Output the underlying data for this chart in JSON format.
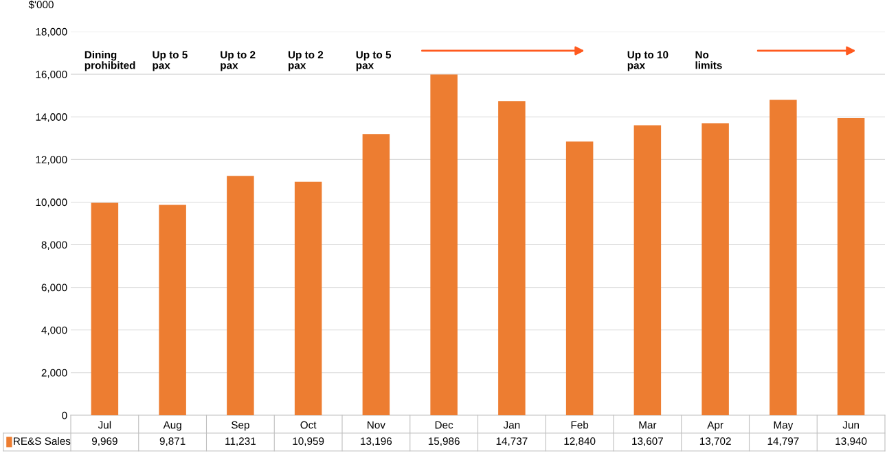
{
  "chart_data": {
    "type": "bar",
    "ylabel": "$'000",
    "categories": [
      "Jul",
      "Aug",
      "Sep",
      "Oct",
      "Nov",
      "Dec",
      "Jan",
      "Feb",
      "Mar",
      "Apr",
      "May",
      "Jun"
    ],
    "series": [
      {
        "name": "RE&S Sales",
        "color": "#ed7d31",
        "values": [
          9969,
          9871,
          11231,
          10959,
          13196,
          15986,
          14737,
          12840,
          13607,
          13702,
          14797,
          13940
        ],
        "value_labels": [
          "9,969",
          "9,871",
          "11,231",
          "10,959",
          "13,196",
          "15,986",
          "14,737",
          "12,840",
          "13,607",
          "13,702",
          "14,797",
          "13,940"
        ]
      }
    ],
    "ylim": [
      0,
      18000
    ],
    "yticks": [
      {
        "value": 0,
        "label": "0"
      },
      {
        "value": 2000,
        "label": "2,000"
      },
      {
        "value": 4000,
        "label": "4,000"
      },
      {
        "value": 6000,
        "label": "6,000"
      },
      {
        "value": 8000,
        "label": "8,000"
      },
      {
        "value": 10000,
        "label": "10,000"
      },
      {
        "value": 12000,
        "label": "12,000"
      },
      {
        "value": 14000,
        "label": "14,000"
      },
      {
        "value": 16000,
        "label": "16,000"
      },
      {
        "value": 18000,
        "label": "18,000"
      }
    ],
    "grid": "y",
    "annotations": [
      "Dining\nprohibited",
      "Up to 5\npax",
      "Up to 2\npax",
      "Up to 2\npax",
      "Up to 5\npax",
      "Up to 10\npax",
      "No\nlimits"
    ]
  }
}
